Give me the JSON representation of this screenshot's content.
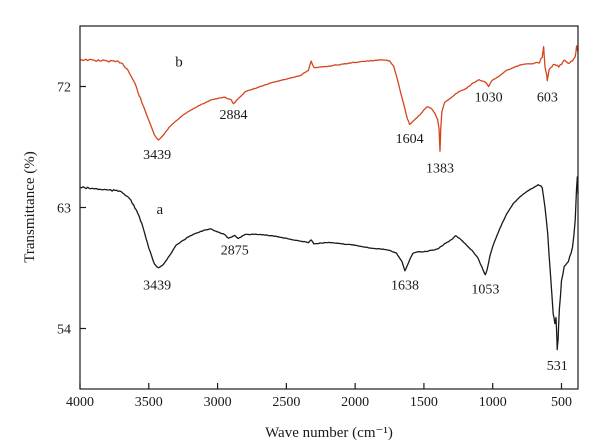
{
  "chart_data": {
    "type": "line",
    "title": "",
    "xlabel": "Wave number (cm⁻¹)",
    "ylabel": "Transmittance (%)",
    "xlim": [
      4000,
      380
    ],
    "ylim": [
      49.5,
      76.5
    ],
    "x_reversed": true,
    "xticks": [
      "4000",
      "3500",
      "3000",
      "2500",
      "2000",
      "1500",
      "1000",
      "500"
    ],
    "yticks": [
      "54",
      "63",
      "72"
    ],
    "grid": false,
    "series": [
      {
        "name": "b",
        "color": "#d4451d",
        "points": [
          [
            4000,
            74.0
          ],
          [
            3800,
            73.9
          ],
          [
            3700,
            73.8
          ],
          [
            3650,
            73.2
          ],
          [
            3600,
            72.2
          ],
          [
            3550,
            70.8
          ],
          [
            3500,
            69.5
          ],
          [
            3460,
            68.4
          ],
          [
            3430,
            68.0
          ],
          [
            3400,
            68.3
          ],
          [
            3350,
            69.0
          ],
          [
            3250,
            69.9
          ],
          [
            3150,
            70.5
          ],
          [
            3050,
            71.0
          ],
          [
            2950,
            71.2
          ],
          [
            2900,
            71.0
          ],
          [
            2884,
            70.7
          ],
          [
            2860,
            71.0
          ],
          [
            2800,
            71.6
          ],
          [
            2600,
            72.3
          ],
          [
            2400,
            72.8
          ],
          [
            2340,
            73.2
          ],
          [
            2320,
            73.9
          ],
          [
            2300,
            73.4
          ],
          [
            2200,
            73.5
          ],
          [
            2000,
            73.8
          ],
          [
            1800,
            74.0
          ],
          [
            1750,
            73.9
          ],
          [
            1720,
            73.5
          ],
          [
            1700,
            72.8
          ],
          [
            1680,
            72.0
          ],
          [
            1650,
            70.8
          ],
          [
            1620,
            69.6
          ],
          [
            1604,
            69.2
          ],
          [
            1590,
            69.3
          ],
          [
            1560,
            69.6
          ],
          [
            1520,
            70.0
          ],
          [
            1480,
            70.5
          ],
          [
            1450,
            70.4
          ],
          [
            1420,
            70.0
          ],
          [
            1400,
            69.5
          ],
          [
            1390,
            68.8
          ],
          [
            1383,
            67.2
          ],
          [
            1378,
            68.8
          ],
          [
            1370,
            70.1
          ],
          [
            1350,
            70.8
          ],
          [
            1300,
            71.2
          ],
          [
            1250,
            71.6
          ],
          [
            1200,
            71.8
          ],
          [
            1150,
            72.2
          ],
          [
            1100,
            72.5
          ],
          [
            1050,
            72.3
          ],
          [
            1030,
            72.0
          ],
          [
            1010,
            72.4
          ],
          [
            950,
            72.8
          ],
          [
            900,
            73.2
          ],
          [
            850,
            73.4
          ],
          [
            800,
            73.6
          ],
          [
            750,
            73.7
          ],
          [
            700,
            73.7
          ],
          [
            660,
            73.8
          ],
          [
            640,
            74.2
          ],
          [
            630,
            75.0
          ],
          [
            620,
            73.5
          ],
          [
            610,
            73.0
          ],
          [
            603,
            72.5
          ],
          [
            590,
            73.2
          ],
          [
            560,
            73.6
          ],
          [
            520,
            73.5
          ],
          [
            480,
            73.9
          ],
          [
            440,
            73.7
          ],
          [
            400,
            74.2
          ],
          [
            390,
            75.0
          ],
          [
            380,
            74.6
          ]
        ]
      },
      {
        "name": "a",
        "color": "#1a1a1a",
        "points": [
          [
            4000,
            64.5
          ],
          [
            3800,
            64.3
          ],
          [
            3700,
            64.2
          ],
          [
            3650,
            63.8
          ],
          [
            3600,
            63.0
          ],
          [
            3550,
            61.8
          ],
          [
            3500,
            60.0
          ],
          [
            3460,
            58.8
          ],
          [
            3430,
            58.5
          ],
          [
            3400,
            58.7
          ],
          [
            3350,
            59.4
          ],
          [
            3300,
            60.2
          ],
          [
            3200,
            60.9
          ],
          [
            3100,
            61.3
          ],
          [
            3050,
            61.4
          ],
          [
            3000,
            61.2
          ],
          [
            2950,
            61.0
          ],
          [
            2920,
            60.7
          ],
          [
            2875,
            60.9
          ],
          [
            2850,
            60.7
          ],
          [
            2800,
            61.0
          ],
          [
            2700,
            61.0
          ],
          [
            2600,
            60.9
          ],
          [
            2500,
            60.7
          ],
          [
            2400,
            60.5
          ],
          [
            2340,
            60.4
          ],
          [
            2320,
            60.6
          ],
          [
            2300,
            60.3
          ],
          [
            2200,
            60.4
          ],
          [
            2100,
            60.3
          ],
          [
            2000,
            60.2
          ],
          [
            1900,
            60.0
          ],
          [
            1800,
            59.9
          ],
          [
            1750,
            59.8
          ],
          [
            1700,
            59.6
          ],
          [
            1660,
            59.0
          ],
          [
            1638,
            58.3
          ],
          [
            1620,
            58.7
          ],
          [
            1600,
            59.2
          ],
          [
            1580,
            59.6
          ],
          [
            1550,
            59.7
          ],
          [
            1500,
            59.7
          ],
          [
            1450,
            59.8
          ],
          [
            1400,
            59.9
          ],
          [
            1350,
            60.3
          ],
          [
            1300,
            60.6
          ],
          [
            1270,
            60.9
          ],
          [
            1240,
            60.7
          ],
          [
            1200,
            60.3
          ],
          [
            1150,
            59.8
          ],
          [
            1110,
            59.3
          ],
          [
            1080,
            58.6
          ],
          [
            1060,
            58.1
          ],
          [
            1053,
            58.0
          ],
          [
            1040,
            58.4
          ],
          [
            1020,
            59.4
          ],
          [
            990,
            60.4
          ],
          [
            950,
            61.4
          ],
          [
            900,
            62.5
          ],
          [
            850,
            63.3
          ],
          [
            800,
            63.8
          ],
          [
            750,
            64.2
          ],
          [
            700,
            64.5
          ],
          [
            660,
            64.7
          ],
          [
            640,
            64.4
          ],
          [
            620,
            63.0
          ],
          [
            600,
            61.0
          ],
          [
            580,
            58.0
          ],
          [
            560,
            55.0
          ],
          [
            548,
            54.4
          ],
          [
            540,
            54.8
          ],
          [
            533,
            53.0
          ],
          [
            531,
            52.4
          ],
          [
            525,
            53.2
          ],
          [
            515,
            55.5
          ],
          [
            500,
            57.5
          ],
          [
            480,
            58.6
          ],
          [
            450,
            59.0
          ],
          [
            420,
            60.0
          ],
          [
            400,
            62.0
          ],
          [
            390,
            64.5
          ],
          [
            385,
            65.3
          ],
          [
            380,
            64.0
          ]
        ]
      }
    ],
    "annotations": [
      {
        "text": "b",
        "x": 3280,
        "y": 73.5
      },
      {
        "text": "a",
        "x": 3420,
        "y": 62.5
      },
      {
        "text": "3439",
        "x": 3439,
        "y": 66.6
      },
      {
        "text": "2884",
        "x": 2884,
        "y": 69.6
      },
      {
        "text": "1604",
        "x": 1604,
        "y": 67.8
      },
      {
        "text": "1383",
        "x": 1383,
        "y": 65.6
      },
      {
        "text": "1030",
        "x": 1030,
        "y": 70.9
      },
      {
        "text": "603",
        "x": 603,
        "y": 70.9
      },
      {
        "text": "3439",
        "x": 3439,
        "y": 56.9
      },
      {
        "text": "2875",
        "x": 2875,
        "y": 59.5
      },
      {
        "text": "1638",
        "x": 1638,
        "y": 56.9
      },
      {
        "text": "1053",
        "x": 1053,
        "y": 56.6
      },
      {
        "text": "531",
        "x": 531,
        "y": 50.9
      }
    ]
  }
}
